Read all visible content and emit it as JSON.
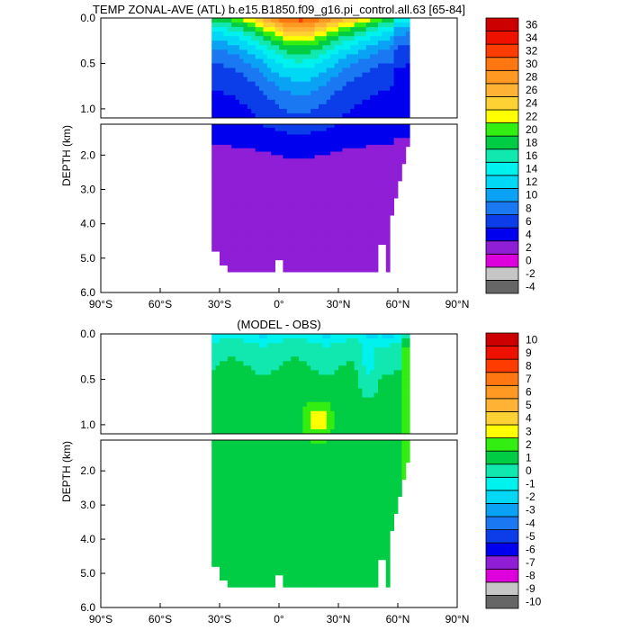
{
  "chart_data": [
    {
      "type": "contour",
      "title": "TEMP ZONAL-AVE (ATL) b.e15.B1850.f09_g16.pi_control.all.63 [65-84]",
      "ylabel": "DEPTH (km)",
      "xlim": [
        -90,
        90
      ],
      "upper_ylim": [
        0,
        1.1
      ],
      "lower_ylim": [
        1.1,
        6.0
      ],
      "upper_yticks": [
        {
          "v": 0.0,
          "label": "0.0"
        },
        {
          "v": 0.5,
          "label": "0.5"
        },
        {
          "v": 1.0,
          "label": "1.0"
        }
      ],
      "lower_yticks": [
        {
          "v": 2.0,
          "label": "2.0"
        },
        {
          "v": 3.0,
          "label": "3.0"
        },
        {
          "v": 4.0,
          "label": "4.0"
        },
        {
          "v": 5.0,
          "label": "5.0"
        },
        {
          "v": 6.0,
          "label": "6.0"
        }
      ],
      "xticks": [
        {
          "v": -90,
          "label": "90°S"
        },
        {
          "v": -60,
          "label": "60°S"
        },
        {
          "v": -30,
          "label": "30°S"
        },
        {
          "v": 0,
          "label": "0°"
        },
        {
          "v": 30,
          "label": "30°N"
        },
        {
          "v": 60,
          "label": "60°N"
        },
        {
          "v": 90,
          "label": "90°N"
        }
      ],
      "data_lat_range": [
        -34,
        66
      ],
      "field": "model_temperature",
      "colorbar": {
        "labels": [
          "-4",
          "-2",
          "0",
          "2",
          "4",
          "6",
          "8",
          "10",
          "12",
          "14",
          "16",
          "18",
          "20",
          "22",
          "24",
          "26",
          "28",
          "30",
          "32",
          "34",
          "36"
        ],
        "colors": [
          "#666666",
          "#c6c6c6",
          "#dd00dd",
          "#8f1ed6",
          "#0000ee",
          "#0b3ee8",
          "#1a78f2",
          "#0aa2f5",
          "#00d8f5",
          "#00f2ee",
          "#10e8b0",
          "#00cc44",
          "#33ee11",
          "#ffff00",
          "#ffd233",
          "#ffb233",
          "#ff9922",
          "#ff7711",
          "#ff3c00",
          "#ee1100",
          "#cc0000"
        ]
      }
    },
    {
      "type": "contour",
      "title": "(MODEL - OBS)",
      "ylabel": "DEPTH (km)",
      "xlim": [
        -90,
        90
      ],
      "upper_ylim": [
        0,
        1.1
      ],
      "lower_ylim": [
        1.1,
        6.0
      ],
      "upper_yticks": [
        {
          "v": 0.0,
          "label": "0.0"
        },
        {
          "v": 0.5,
          "label": "0.5"
        },
        {
          "v": 1.0,
          "label": "1.0"
        }
      ],
      "lower_yticks": [
        {
          "v": 2.0,
          "label": "2.0"
        },
        {
          "v": 3.0,
          "label": "3.0"
        },
        {
          "v": 4.0,
          "label": "4.0"
        },
        {
          "v": 5.0,
          "label": "5.0"
        },
        {
          "v": 6.0,
          "label": "6.0"
        }
      ],
      "xticks": [
        {
          "v": -90,
          "label": "90°S"
        },
        {
          "v": -60,
          "label": "60°S"
        },
        {
          "v": -30,
          "label": "30°S"
        },
        {
          "v": 0,
          "label": "0°"
        },
        {
          "v": 30,
          "label": "30°N"
        },
        {
          "v": 60,
          "label": "60°N"
        },
        {
          "v": 90,
          "label": "90°N"
        }
      ],
      "data_lat_range": [
        -34,
        66
      ],
      "field": "model_minus_obs",
      "colorbar": {
        "labels": [
          "-10",
          "-9",
          "-8",
          "-7",
          "-6",
          "-5",
          "-4",
          "-3",
          "-2",
          "-1",
          "0",
          "1",
          "2",
          "3",
          "4",
          "5",
          "6",
          "7",
          "8",
          "9",
          "10"
        ],
        "colors": [
          "#666666",
          "#c6c6c6",
          "#dd00dd",
          "#8f1ed6",
          "#0000ee",
          "#0b3ee8",
          "#1a78f2",
          "#0aa2f5",
          "#00d8f5",
          "#00f2ee",
          "#10e8b0",
          "#00cc44",
          "#33ee11",
          "#ffff00",
          "#ffd233",
          "#ffb233",
          "#ff9922",
          "#ff7711",
          "#ff3c00",
          "#ee1100",
          "#cc0000"
        ]
      }
    }
  ]
}
